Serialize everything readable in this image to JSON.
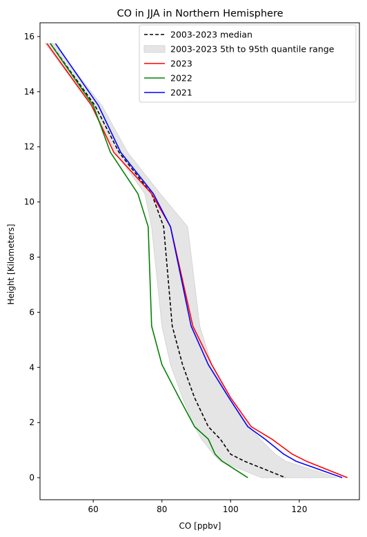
{
  "chart_data": {
    "type": "line",
    "title": "CO in JJA in Northern Hemisphere",
    "xlabel": "CO [ppbv]",
    "ylabel": "Height [Kilometers]",
    "xlim": [
      44.5,
      137.5
    ],
    "ylim": [
      -0.8,
      16.5
    ],
    "xticks": [
      60,
      80,
      100,
      120
    ],
    "yticks": [
      0,
      2,
      4,
      6,
      8,
      10,
      12,
      14,
      16
    ],
    "grid": false,
    "legend_position": "top-right",
    "band": {
      "name": "2003-2023 5th to 95th quantile range",
      "color": "#e5e5e5",
      "edge_color": "#d6d6d6",
      "height": [
        15.75,
        13.5,
        11.8,
        10.3,
        9.1,
        5.5,
        4.1,
        2.9,
        1.85,
        1.4,
        0.85,
        0.6,
        0.4,
        0.0
      ],
      "low": [
        46,
        59.5,
        66.5,
        75,
        77,
        80,
        82.5,
        86,
        89.5,
        91.5,
        95,
        97,
        101,
        109
      ],
      "high": [
        48.5,
        62.5,
        70,
        79.5,
        87.5,
        91,
        94.5,
        99.5,
        105.5,
        108.5,
        113,
        116,
        121,
        131
      ]
    },
    "series": [
      {
        "name": "2003-2023 median",
        "color": "#000000",
        "dash": true,
        "x": [
          47.5,
          60.5,
          67.5,
          77,
          80.5,
          83,
          86,
          89.5,
          93.5,
          97,
          100,
          104,
          108,
          116
        ],
        "y": [
          15.75,
          13.5,
          11.8,
          10.3,
          9.1,
          5.5,
          4.1,
          2.9,
          1.85,
          1.4,
          0.85,
          0.6,
          0.4,
          0.0
        ]
      },
      {
        "name": "2023",
        "color": "#ff0000",
        "dash": false,
        "x": [
          46.5,
          59.5,
          66,
          77,
          82.5,
          89,
          94.5,
          100,
          106,
          112,
          118,
          122,
          134
        ],
        "y": [
          15.75,
          13.5,
          11.8,
          10.3,
          9.1,
          5.5,
          4.1,
          2.9,
          1.85,
          1.4,
          0.85,
          0.6,
          0.0
        ]
      },
      {
        "name": "2022",
        "color": "#008000",
        "dash": false,
        "x": [
          47.5,
          60,
          65,
          73,
          76,
          77,
          80,
          85,
          89.5,
          93.5,
          95.5,
          97.5,
          105
        ],
        "y": [
          15.75,
          13.5,
          11.8,
          10.3,
          9.1,
          5.5,
          4.1,
          2.9,
          1.85,
          1.4,
          0.85,
          0.6,
          0.0
        ]
      },
      {
        "name": "2021",
        "color": "#0000ff",
        "dash": false,
        "x": [
          49,
          61.5,
          68,
          77.5,
          82.5,
          88.5,
          93.5,
          99.5,
          105,
          110,
          115.5,
          119,
          132.5
        ],
        "y": [
          15.75,
          13.5,
          11.8,
          10.3,
          9.1,
          5.5,
          4.1,
          2.9,
          1.85,
          1.4,
          0.85,
          0.6,
          0.0
        ]
      }
    ]
  }
}
